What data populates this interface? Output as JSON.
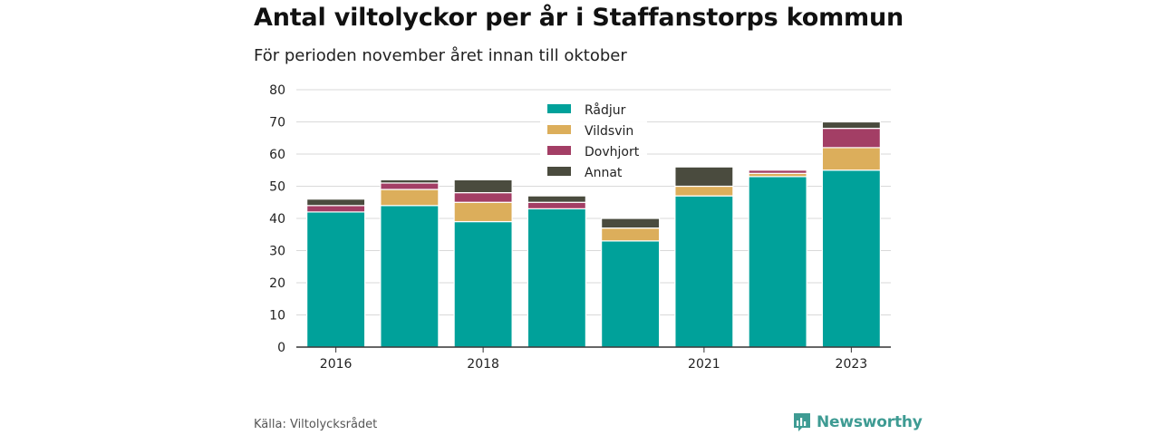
{
  "title": "Antal viltolyckor per år i Staffanstorps kommun",
  "subtitle": "För perioden november året innan till oktober",
  "source": "Källa: Viltolycksrådet",
  "brand": "Newsworthy",
  "colors": {
    "Rådjur": "#00a19a",
    "Vildsvin": "#dcae5b",
    "Dovhjort": "#a33e65",
    "Annat": "#4a4b3e",
    "brand": "#3e9b93"
  },
  "chart_data": {
    "type": "bar",
    "stacked": true,
    "categories": [
      "2016",
      "2017",
      "2018",
      "2019",
      "2020",
      "2021",
      "2022",
      "2023"
    ],
    "x_tick_labels": [
      "2016",
      "",
      "2018",
      "",
      "",
      "2021",
      "",
      "2023"
    ],
    "series": [
      {
        "name": "Rådjur",
        "values": [
          42,
          44,
          39,
          43,
          33,
          47,
          53,
          55
        ]
      },
      {
        "name": "Vildsvin",
        "values": [
          0,
          5,
          6,
          0,
          4,
          3,
          1,
          7
        ]
      },
      {
        "name": "Dovhjort",
        "values": [
          2,
          2,
          3,
          2,
          0,
          0,
          1,
          6
        ]
      },
      {
        "name": "Annat",
        "values": [
          2,
          1,
          4,
          2,
          3,
          6,
          0,
          2
        ]
      }
    ],
    "ylim": [
      0,
      80
    ],
    "yticks": [
      0,
      10,
      20,
      30,
      40,
      50,
      60,
      70,
      80
    ],
    "grid": true,
    "legend_position": "top-center"
  }
}
